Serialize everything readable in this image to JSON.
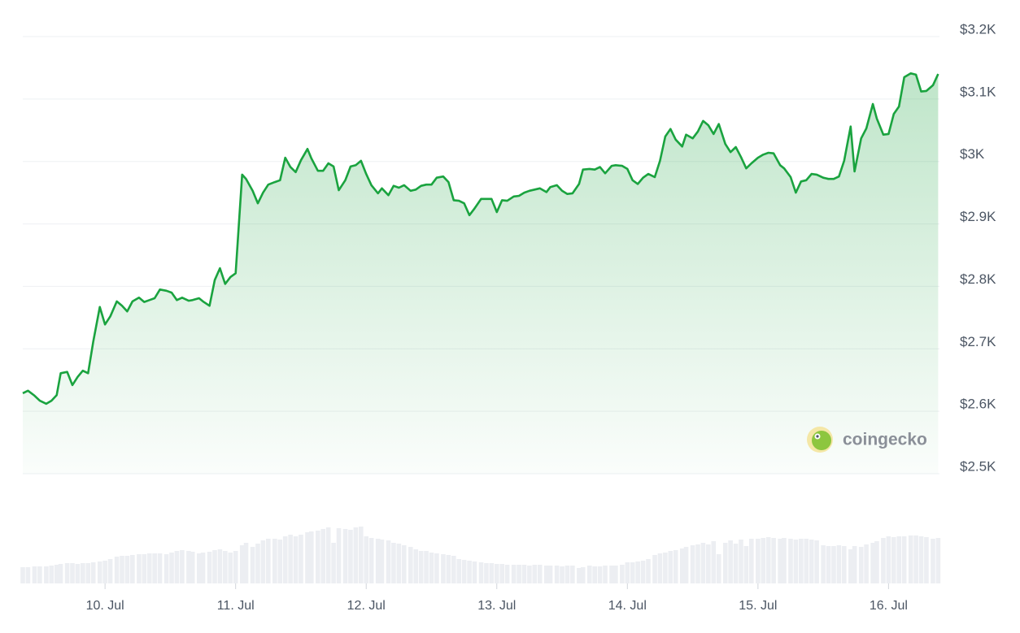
{
  "chart_data": {
    "type": "area",
    "watermark": "coingecko",
    "color": "#1aa33f",
    "grid": true,
    "xlim": [
      9.37,
      16.39
    ],
    "xticks": [
      {
        "value": 10,
        "label": "10. Jul"
      },
      {
        "value": 11,
        "label": "11. Jul"
      },
      {
        "value": 12,
        "label": "12. Jul"
      },
      {
        "value": 13,
        "label": "13. Jul"
      },
      {
        "value": 14,
        "label": "14. Jul"
      },
      {
        "value": 15,
        "label": "15. Jul"
      },
      {
        "value": 16,
        "label": "16. Jul"
      }
    ],
    "ylim": [
      2500,
      3200
    ],
    "yticks": [
      {
        "value": 3200,
        "label": "$3.2K"
      },
      {
        "value": 3100,
        "label": "$3.1K"
      },
      {
        "value": 3000,
        "label": "$3K"
      },
      {
        "value": 2900,
        "label": "$2.9K"
      },
      {
        "value": 2800,
        "label": "$2.8K"
      },
      {
        "value": 2700,
        "label": "$2.7K"
      },
      {
        "value": 2600,
        "label": "$2.6K"
      },
      {
        "value": 2500,
        "label": "$2.5K"
      }
    ],
    "x": [
      9.37,
      9.41,
      9.46,
      9.5,
      9.55,
      9.59,
      9.63,
      9.66,
      9.71,
      9.75,
      9.79,
      9.83,
      9.87,
      9.91,
      9.96,
      10.0,
      10.04,
      10.09,
      10.13,
      10.17,
      10.21,
      10.26,
      10.3,
      10.34,
      10.38,
      10.42,
      10.47,
      10.51,
      10.55,
      10.59,
      10.64,
      10.67,
      10.72,
      10.75,
      10.8,
      10.84,
      10.88,
      10.92,
      10.96,
      11.0,
      11.05,
      11.08,
      11.13,
      11.17,
      11.21,
      11.25,
      11.3,
      11.34,
      11.38,
      11.42,
      11.46,
      11.5,
      11.55,
      11.58,
      11.63,
      11.67,
      11.71,
      11.75,
      11.79,
      11.84,
      11.88,
      11.92,
      11.96,
      12.0,
      12.04,
      12.09,
      12.12,
      12.17,
      12.21,
      12.25,
      12.29,
      12.34,
      12.38,
      12.42,
      12.46,
      12.5,
      12.54,
      12.59,
      12.63,
      12.67,
      12.71,
      12.75,
      12.79,
      12.83,
      12.88,
      12.92,
      12.96,
      13.0,
      13.04,
      13.08,
      13.13,
      13.17,
      13.21,
      13.25,
      13.29,
      13.33,
      13.38,
      13.41,
      13.46,
      13.5,
      13.54,
      13.58,
      13.63,
      13.66,
      13.71,
      13.75,
      13.79,
      13.83,
      13.88,
      13.91,
      13.96,
      14.0,
      14.04,
      14.08,
      14.12,
      14.16,
      14.21,
      14.25,
      14.29,
      14.33,
      14.37,
      14.42,
      14.45,
      14.5,
      14.54,
      14.58,
      14.62,
      14.66,
      14.7,
      14.75,
      14.79,
      14.83,
      14.87,
      14.91,
      14.95,
      15.0,
      15.04,
      15.08,
      15.12,
      15.17,
      15.2,
      15.25,
      15.29,
      15.33,
      15.37,
      15.41,
      15.45,
      15.5,
      15.54,
      15.58,
      15.62,
      15.66,
      15.71,
      15.74,
      15.79,
      15.83,
      15.88,
      15.91,
      15.96,
      16.0,
      16.04,
      16.08,
      16.12,
      16.17,
      16.21,
      16.25,
      16.29,
      16.34,
      16.38
    ],
    "values": [
      2629,
      2633,
      2625,
      2617,
      2612,
      2617,
      2626,
      2661,
      2663,
      2642,
      2655,
      2665,
      2661,
      2712,
      2767,
      2739,
      2752,
      2776,
      2769,
      2760,
      2776,
      2782,
      2775,
      2778,
      2781,
      2795,
      2793,
      2790,
      2778,
      2782,
      2777,
      2778,
      2781,
      2776,
      2769,
      2810,
      2829,
      2804,
      2815,
      2821,
      2979,
      2972,
      2953,
      2933,
      2950,
      2963,
      2967,
      2970,
      3006,
      2991,
      2983,
      3002,
      3020,
      3005,
      2985,
      2985,
      2997,
      2992,
      2954,
      2970,
      2992,
      2994,
      3001,
      2980,
      2962,
      2949,
      2957,
      2946,
      2961,
      2958,
      2962,
      2953,
      2955,
      2961,
      2963,
      2963,
      2974,
      2976,
      2967,
      2938,
      2937,
      2933,
      2914,
      2925,
      2940,
      2940,
      2940,
      2919,
      2938,
      2937,
      2944,
      2945,
      2950,
      2953,
      2955,
      2957,
      2951,
      2959,
      2962,
      2953,
      2948,
      2949,
      2964,
      2987,
      2988,
      2987,
      2991,
      2981,
      2993,
      2994,
      2993,
      2988,
      2970,
      2964,
      2974,
      2980,
      2975,
      3001,
      3040,
      3052,
      3035,
      3024,
      3043,
      3037,
      3048,
      3065,
      3058,
      3044,
      3060,
      3028,
      3015,
      3023,
      3007,
      2989,
      2997,
      3006,
      3011,
      3014,
      3013,
      2994,
      2989,
      2975,
      2950,
      2968,
      2970,
      2980,
      2979,
      2974,
      2972,
      2972,
      2976,
      3001,
      3056,
      2984,
      3037,
      3053,
      3092,
      3069,
      3043,
      3044,
      3076,
      3088,
      3135,
      3141,
      3139,
      3112,
      3113,
      3122,
      3140
    ],
    "volume": {
      "color": "#eceef2",
      "ylim": [
        0,
        100
      ],
      "values": [
        20,
        20,
        21,
        21,
        21,
        22,
        23,
        24,
        25,
        25,
        24,
        25,
        25,
        26,
        27,
        28,
        30,
        33,
        34,
        34,
        35,
        36,
        36,
        37,
        37,
        37,
        36,
        38,
        40,
        41,
        40,
        39,
        37,
        38,
        39,
        41,
        42,
        40,
        38,
        40,
        47,
        50,
        45,
        49,
        53,
        55,
        55,
        54,
        58,
        60,
        58,
        60,
        63,
        64,
        65,
        67,
        69,
        50,
        68,
        67,
        66,
        69,
        70,
        58,
        56,
        55,
        54,
        53,
        50,
        49,
        47,
        45,
        42,
        40,
        40,
        38,
        37,
        36,
        35,
        34,
        30,
        29,
        28,
        27,
        26,
        25,
        25,
        24,
        24,
        23,
        23,
        23,
        23,
        22,
        23,
        23,
        22,
        22,
        22,
        21,
        22,
        22,
        19,
        20,
        22,
        21,
        21,
        22,
        22,
        22,
        23,
        26,
        26,
        27,
        28,
        30,
        35,
        37,
        38,
        40,
        41,
        43,
        45,
        47,
        48,
        50,
        48,
        52,
        36,
        50,
        53,
        49,
        54,
        46,
        55,
        55,
        56,
        57,
        56,
        55,
        56,
        55,
        54,
        55,
        55,
        54,
        53,
        47,
        46,
        46,
        47,
        46,
        42,
        46,
        45,
        48,
        50,
        52,
        56,
        58,
        57,
        58,
        58,
        59,
        59,
        58,
        57,
        55,
        56
      ]
    }
  }
}
